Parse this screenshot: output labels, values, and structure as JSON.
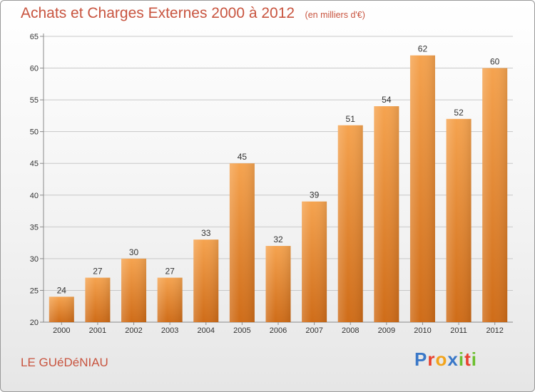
{
  "header": {
    "title": "Achats et Charges Externes 2000 à 2012",
    "subtitle": "(en milliers d'€)"
  },
  "footer": {
    "commune": "LE GUéDéNIAU",
    "brand": {
      "text": "Proxiti",
      "letters": [
        {
          "char": "P",
          "color": "#3a78c8"
        },
        {
          "char": "r",
          "color": "#e8412f"
        },
        {
          "char": "o",
          "color": "#f2a41c"
        },
        {
          "char": "x",
          "color": "#3a78c8"
        },
        {
          "char": "i",
          "color": "#6cbf2f"
        },
        {
          "char": "t",
          "color": "#e8412f"
        },
        {
          "char": "i",
          "color": "#6cbf2f"
        }
      ]
    }
  },
  "colors": {
    "title": "#c8543f",
    "bar_top": "#f5a34f",
    "bar_bottom": "#cf6c18",
    "grid": "#c8c8c8",
    "axis": "#8a8a8a",
    "text": "#333333"
  },
  "chart_data": {
    "type": "bar",
    "categories": [
      "2000",
      "2001",
      "2002",
      "2003",
      "2004",
      "2005",
      "2006",
      "2007",
      "2008",
      "2009",
      "2010",
      "2011",
      "2012"
    ],
    "values": [
      24,
      27,
      30,
      27,
      33,
      45,
      32,
      39,
      51,
      54,
      62,
      52,
      60
    ],
    "data_labels": [
      "24",
      "27",
      "30",
      "27",
      "33",
      "45",
      "32",
      "39",
      "51",
      "54",
      "62",
      "52",
      "60"
    ],
    "ylim": [
      20,
      65
    ],
    "yticks": [
      20,
      25,
      30,
      35,
      40,
      45,
      50,
      55,
      60,
      65
    ],
    "grid": true,
    "xlabel": "",
    "ylabel": ""
  }
}
